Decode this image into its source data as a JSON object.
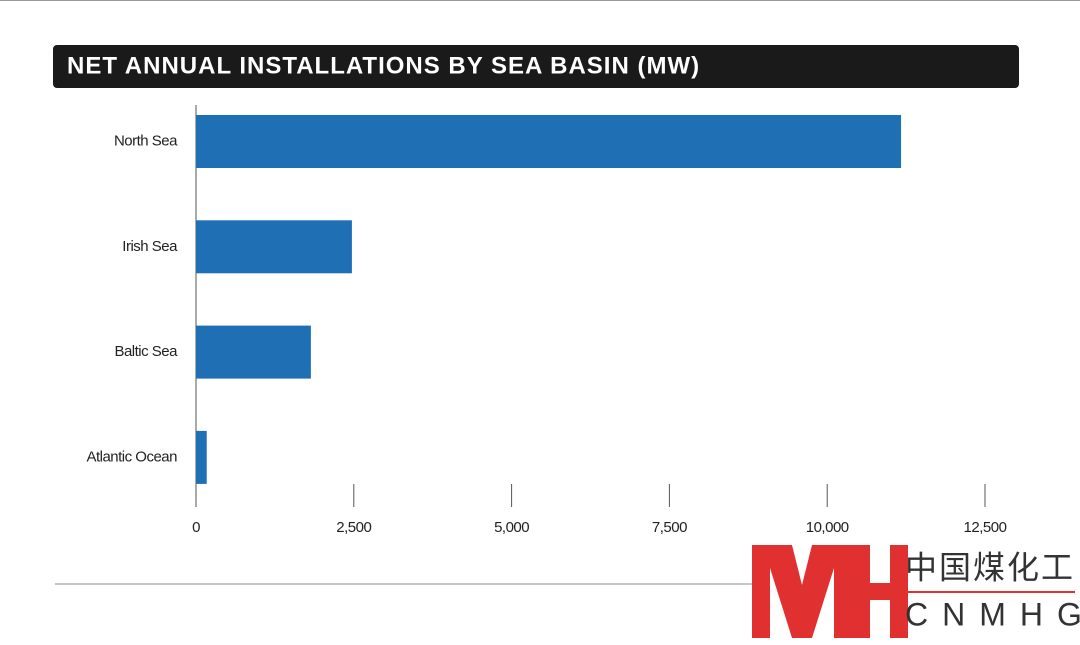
{
  "chart_data": {
    "type": "bar",
    "orientation": "horizontal",
    "title": "NET ANNUAL INSTALLATIONS BY SEA BASIN (MW)",
    "categories": [
      "North Sea",
      "Irish Sea",
      "Baltic Sea",
      "Atlantic Ocean"
    ],
    "values": [
      11170,
      2470,
      1820,
      170
    ],
    "color": "#1f6fb5",
    "xlim": [
      0,
      12500
    ],
    "xticks": [
      0,
      {
        "value": 2500,
        "label": "2,500"
      },
      {
        "value": 5000,
        "label": "5,000"
      },
      {
        "value": 7500,
        "label": "7,500"
      },
      {
        "value": 10000,
        "label": "10,000"
      },
      {
        "value": 12500,
        "label": "12,500"
      }
    ]
  },
  "watermark": {
    "text": "中国煤化工",
    "subtext": "CNMHG"
  }
}
